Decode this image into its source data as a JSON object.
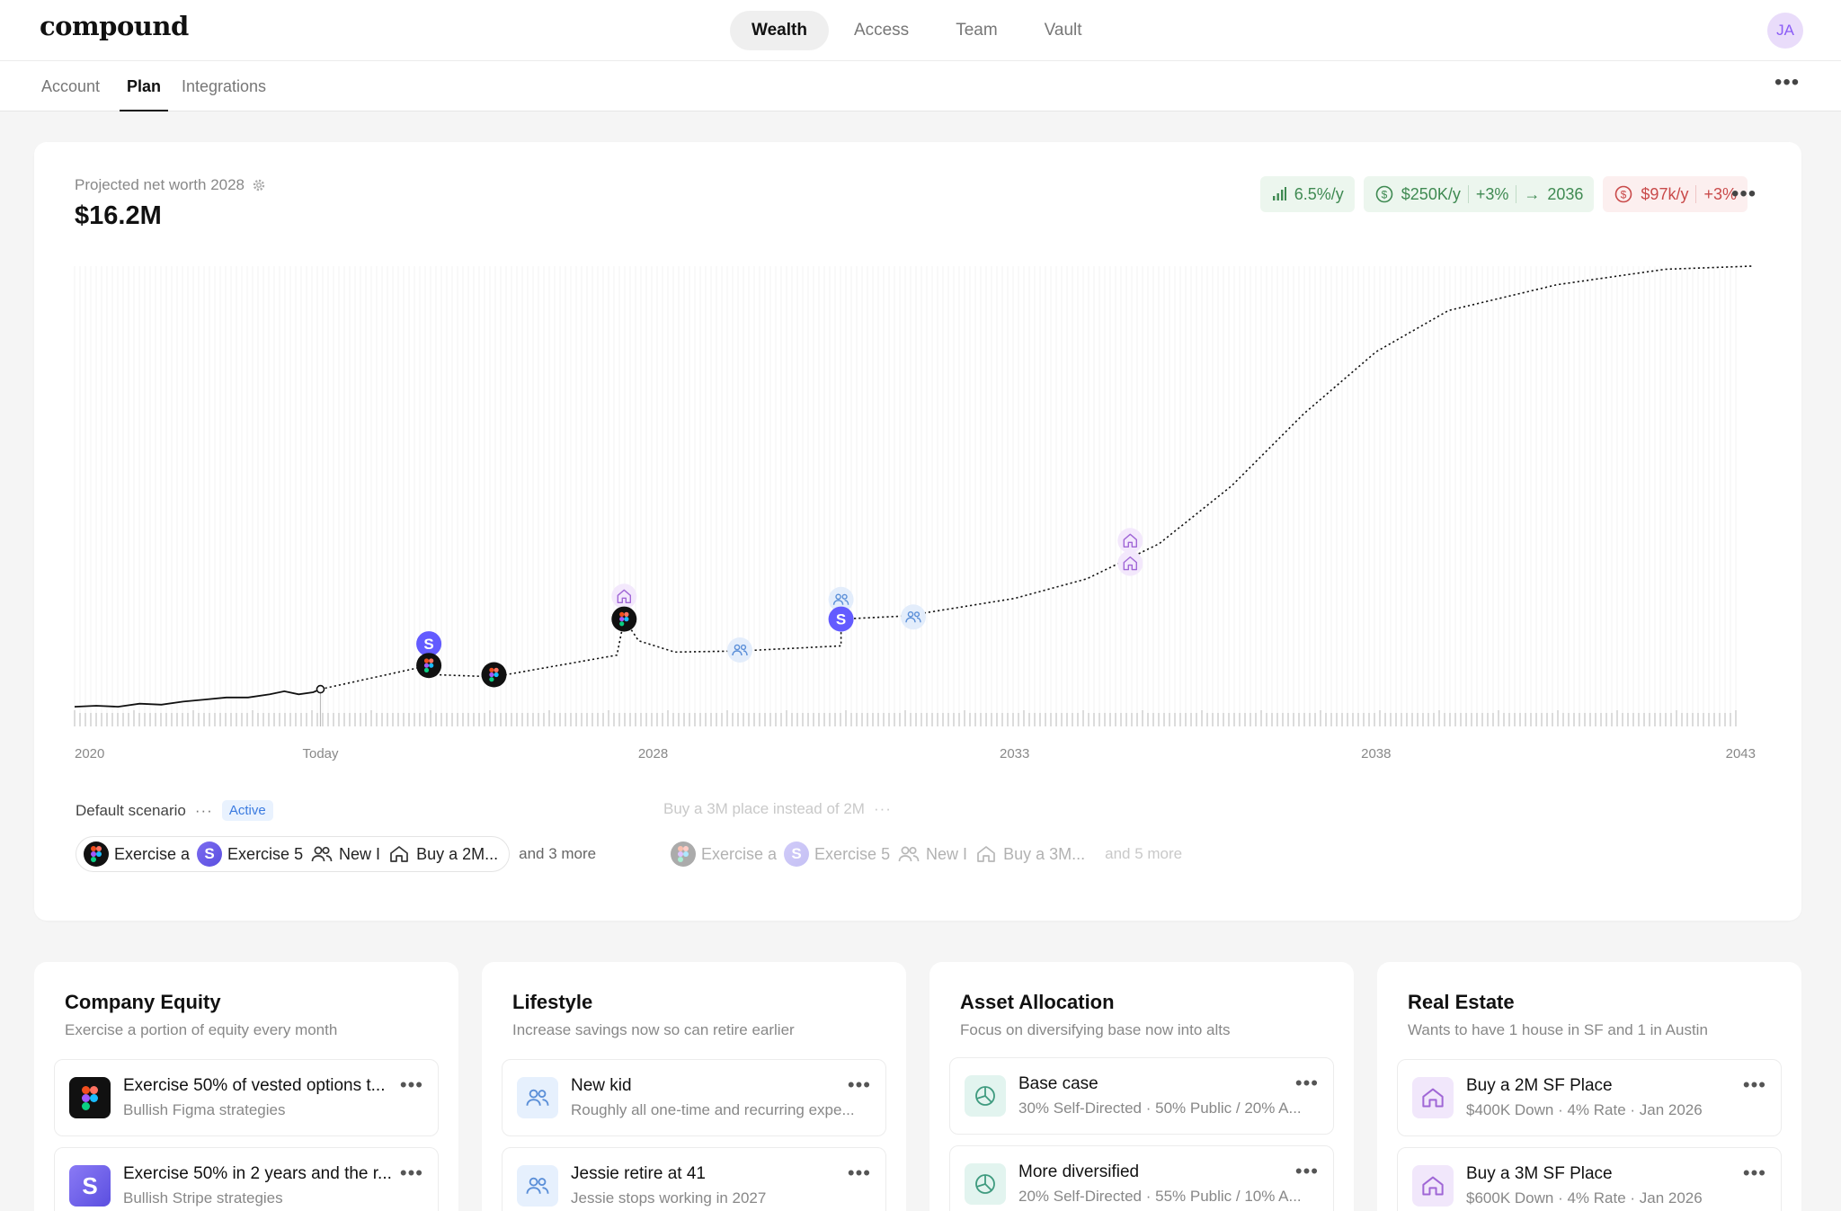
{
  "app": {
    "logo": "compound",
    "user_initials": "JA"
  },
  "main_nav": [
    {
      "label": "Wealth",
      "active": true
    },
    {
      "label": "Access",
      "active": false
    },
    {
      "label": "Team",
      "active": false
    },
    {
      "label": "Vault",
      "active": false
    }
  ],
  "sub_tabs": [
    {
      "label": "Account",
      "active": false
    },
    {
      "label": "Plan",
      "active": true
    },
    {
      "label": "Integrations",
      "active": false
    }
  ],
  "summary": {
    "label": "Projected net worth 2028",
    "value": "$16.2M",
    "pills": {
      "growth": "6.5%/y",
      "income": "$250K/y",
      "income_growth": "+3%",
      "income_until": "2036",
      "spend": "$97k/y",
      "spend_growth": "+3%"
    }
  },
  "chart_data": {
    "type": "line",
    "x_tick_labels": [
      "2020",
      "Today",
      "2028",
      "2033",
      "2038",
      "2043"
    ],
    "xlim": [
      2020,
      2043
    ],
    "today": 2023.4,
    "series": [
      {
        "style": "solid",
        "points": [
          [
            2020.0,
            0.6
          ],
          [
            2020.3,
            0.7
          ],
          [
            2020.6,
            0.6
          ],
          [
            2020.9,
            0.9
          ],
          [
            2021.2,
            0.8
          ],
          [
            2021.5,
            1.1
          ],
          [
            2021.8,
            1.3
          ],
          [
            2022.1,
            1.5
          ],
          [
            2022.4,
            1.5
          ],
          [
            2022.7,
            1.8
          ],
          [
            2022.9,
            2.1
          ],
          [
            2023.1,
            1.8
          ],
          [
            2023.3,
            2.0
          ],
          [
            2023.4,
            2.3
          ]
        ]
      },
      {
        "style": "dotted",
        "points": [
          [
            2023.4,
            2.3
          ],
          [
            2024.9,
            4.6
          ],
          [
            2025.0,
            3.7
          ],
          [
            2025.8,
            3.5
          ],
          [
            2027.5,
            5.6
          ],
          [
            2027.6,
            9.1
          ],
          [
            2027.8,
            7.0
          ],
          [
            2028.3,
            5.9
          ],
          [
            2029.2,
            6.0
          ],
          [
            2030.6,
            6.5
          ],
          [
            2030.6,
            9.1
          ],
          [
            2031.5,
            9.4
          ],
          [
            2033.0,
            11.1
          ],
          [
            2034.0,
            13.0
          ],
          [
            2035.0,
            16.4
          ],
          [
            2036.0,
            22.0
          ],
          [
            2037.0,
            29.0
          ],
          [
            2038.0,
            35.0
          ],
          [
            2039.0,
            39.0
          ],
          [
            2040.5,
            41.5
          ],
          [
            2042.0,
            43.0
          ],
          [
            2043.2,
            43.3
          ]
        ]
      }
    ],
    "markers": [
      {
        "x": 2024.9,
        "y": 6.7,
        "icon": "stripe"
      },
      {
        "x": 2024.9,
        "y": 4.6,
        "icon": "figma"
      },
      {
        "x": 2025.8,
        "y": 3.7,
        "icon": "figma"
      },
      {
        "x": 2027.6,
        "y": 11.3,
        "icon": "house"
      },
      {
        "x": 2027.6,
        "y": 9.1,
        "icon": "figma"
      },
      {
        "x": 2029.2,
        "y": 6.1,
        "icon": "people"
      },
      {
        "x": 2030.6,
        "y": 11.0,
        "icon": "people"
      },
      {
        "x": 2030.6,
        "y": 9.1,
        "icon": "stripe"
      },
      {
        "x": 2031.6,
        "y": 9.3,
        "icon": "people"
      },
      {
        "x": 2034.6,
        "y": 16.7,
        "icon": "house"
      },
      {
        "x": 2034.6,
        "y": 14.5,
        "icon": "house"
      }
    ]
  },
  "scenarios": {
    "default": {
      "name": "Default scenario",
      "badge": "Active",
      "chips": [
        "Exercise a",
        "Exercise 5",
        "New I",
        "Buy a 2M..."
      ],
      "more": "and 3 more"
    },
    "alternate": {
      "name": "Buy a 3M place instead of 2M",
      "chips": [
        "Exercise a",
        "Exercise 5",
        "New I",
        "Buy a 3M..."
      ],
      "more": "and 5 more"
    }
  },
  "cards": [
    {
      "title": "Company Equity",
      "subtitle": "Exercise a portion of equity every month",
      "items": [
        {
          "icon": "figma",
          "title": "Exercise 50% of vested options t...",
          "sub": "Bullish Figma strategies"
        },
        {
          "icon": "stripe",
          "title": "Exercise 50% in 2 years and the r...",
          "sub": "Bullish Stripe strategies"
        }
      ]
    },
    {
      "title": "Lifestyle",
      "subtitle": "Increase savings now so can retire earlier",
      "items": [
        {
          "icon": "people",
          "title": "New kid",
          "sub": "Roughly all one-time and recurring expe..."
        },
        {
          "icon": "people",
          "title": "Jessie retire at 41",
          "sub": "Jessie stops working in 2027"
        }
      ]
    },
    {
      "title": "Asset Allocation",
      "subtitle": "Focus on diversifying base now into alts",
      "items": [
        {
          "icon": "pie",
          "title": "Base case",
          "sub": "30% Self-Directed · 50% Public / 20% A..."
        },
        {
          "icon": "pie",
          "title": "More diversified",
          "sub": "20% Self-Directed · 55% Public / 10% A..."
        }
      ]
    },
    {
      "title": "Real Estate",
      "subtitle": "Wants to have 1 house in SF and 1 in Austin",
      "items": [
        {
          "icon": "house",
          "title": "Buy a 2M SF Place",
          "sub": "$400K Down · 4% Rate · Jan 2026"
        },
        {
          "icon": "house",
          "title": "Buy a 3M SF Place",
          "sub": "$600K Down · 4% Rate · Jan 2026"
        }
      ]
    }
  ],
  "colors": {
    "accent_green": "#3f8a52",
    "accent_red": "#c94a4a",
    "stripe_purple": "#635bff",
    "people_blue": "#5b8fd8",
    "house_purple": "#a067d6"
  }
}
